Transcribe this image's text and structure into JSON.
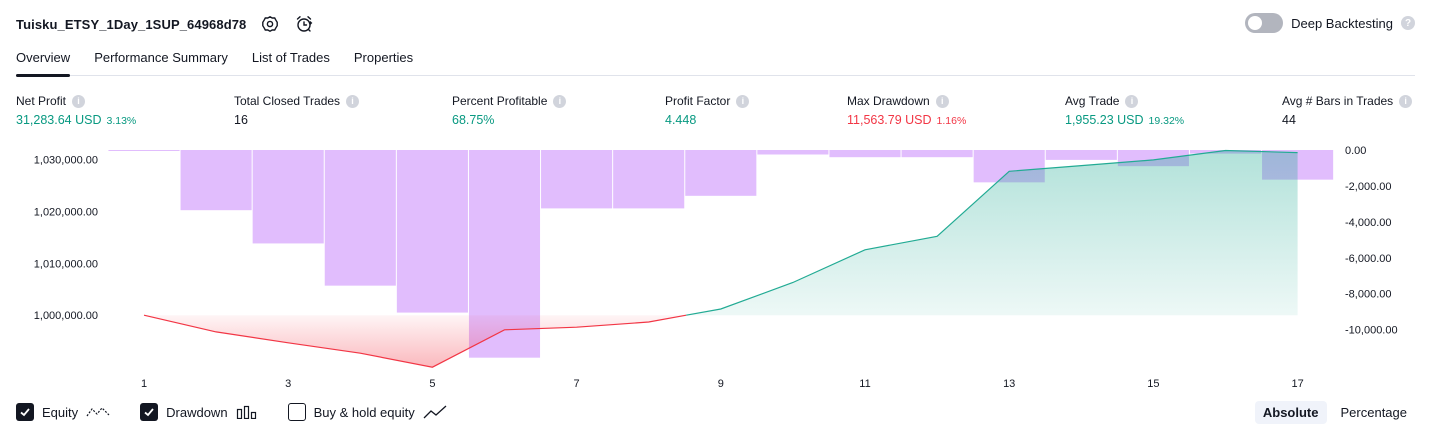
{
  "header": {
    "title": "Tuisku_ETSY_1Day_1SUP_64968d78",
    "settings_icon": "gear-icon",
    "alert_icon": "alarm-clock-icon",
    "deep_backtesting_label": "Deep Backtesting",
    "deep_backtesting_enabled": false,
    "help_glyph": "?"
  },
  "tabs": [
    {
      "label": "Overview",
      "active": true
    },
    {
      "label": "Performance Summary",
      "active": false
    },
    {
      "label": "List of Trades",
      "active": false
    },
    {
      "label": "Properties",
      "active": false
    }
  ],
  "metrics": [
    {
      "label": "Net Profit",
      "value": "31,283.64 USD",
      "pct": "3.13%",
      "tone": "green"
    },
    {
      "label": "Total Closed Trades",
      "value": "16",
      "pct": "",
      "tone": "dark"
    },
    {
      "label": "Percent Profitable",
      "value": "68.75%",
      "pct": "",
      "tone": "green"
    },
    {
      "label": "Profit Factor",
      "value": "4.448",
      "pct": "",
      "tone": "green"
    },
    {
      "label": "Max Drawdown",
      "value": "11,563.79 USD",
      "pct": "1.16%",
      "tone": "red"
    },
    {
      "label": "Avg Trade",
      "value": "1,955.23 USD",
      "pct": "19.32%",
      "tone": "green"
    },
    {
      "label": "Avg # Bars in Trades",
      "value": "44",
      "pct": "",
      "tone": "dark"
    }
  ],
  "info_glyph": "i",
  "legend": {
    "equity": {
      "label": "Equity",
      "checked": true
    },
    "drawdown": {
      "label": "Drawdown",
      "checked": true
    },
    "buyhold": {
      "label": "Buy & hold equity",
      "checked": false
    }
  },
  "mode": {
    "absolute": "Absolute",
    "percentage": "Percentage",
    "active": "absolute"
  },
  "colors": {
    "positive": "#089981",
    "negative": "#f23645",
    "drawdown_bar": "#e1bdfd",
    "equity_above": "#22ab94",
    "equity_below": "#f23645"
  },
  "chart_data": {
    "type": "combo",
    "x_ticks": [
      "1",
      "3",
      "5",
      "7",
      "9",
      "11",
      "13",
      "15",
      "17"
    ],
    "x_range": [
      1,
      17
    ],
    "left_axis": {
      "ticks": [
        "1,030,000.00",
        "1,020,000.00",
        "1,010,000.00",
        "1,000,000.00"
      ],
      "tick_values": [
        1030000,
        1020000,
        1010000,
        1000000
      ],
      "range": [
        991000,
        1031800
      ]
    },
    "right_axis": {
      "ticks": [
        "0.00",
        "-2,000.00",
        "-4,000.00",
        "-6,000.00",
        "-8,000.00",
        "-10,000.00"
      ],
      "tick_values": [
        0,
        -2000,
        -4000,
        -6000,
        -8000,
        -10000
      ],
      "range": [
        -11800,
        0
      ]
    },
    "baseline_equity": 1000000,
    "equity": {
      "x": [
        1,
        2,
        3,
        4,
        5,
        6,
        7,
        8,
        9,
        10,
        11,
        12,
        13,
        14,
        15,
        16,
        17
      ],
      "values": [
        1000000,
        996800,
        994700,
        992700,
        990000,
        997200,
        997700,
        998700,
        1001200,
        1006300,
        1012600,
        1015200,
        1027700,
        1028800,
        1029900,
        1031700,
        1031300
      ]
    },
    "drawdown": {
      "x": [
        1,
        2,
        3,
        4,
        5,
        6,
        7,
        8,
        9,
        10,
        11,
        12,
        13,
        14,
        15,
        16,
        17
      ],
      "values": [
        -50,
        -3350,
        -5200,
        -7550,
        -9050,
        -11560,
        -3250,
        -3250,
        -2550,
        -250,
        -400,
        -400,
        -1800,
        -550,
        -900,
        -200,
        -1650
      ]
    }
  }
}
